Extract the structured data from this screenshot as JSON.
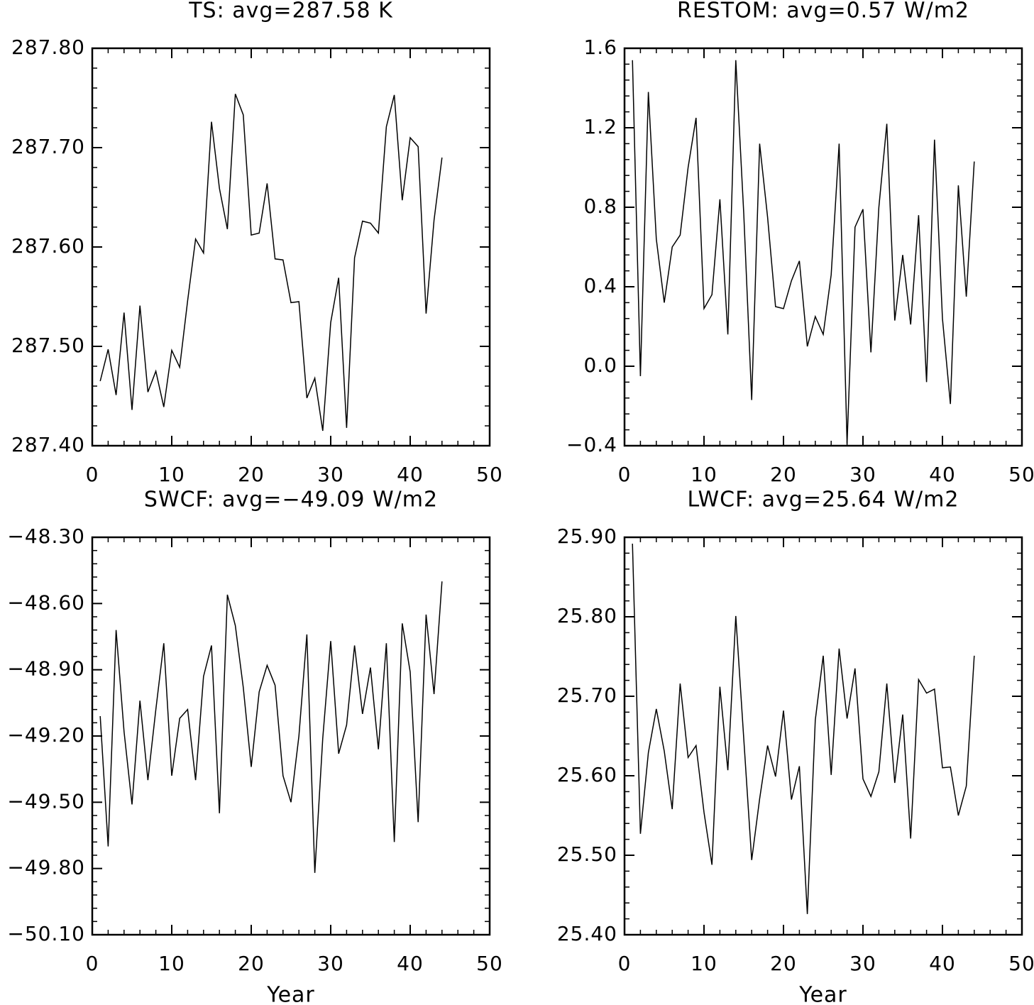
{
  "chart_data": [
    {
      "type": "line",
      "title": "TS: avg=287.58 K",
      "color": "#000000",
      "x": [
        1,
        2,
        3,
        4,
        5,
        6,
        7,
        8,
        9,
        10,
        11,
        12,
        13,
        14,
        15,
        16,
        17,
        18,
        19,
        20,
        21,
        22,
        23,
        24,
        25,
        26,
        27,
        28,
        29,
        30,
        31,
        32,
        33,
        34,
        35,
        36,
        37,
        38,
        39,
        40,
        41,
        42,
        43,
        44
      ],
      "values": [
        287.465,
        287.497,
        287.451,
        287.534,
        287.436,
        287.541,
        287.454,
        287.475,
        287.439,
        287.496,
        287.479,
        287.546,
        287.608,
        287.594,
        287.726,
        287.659,
        287.618,
        287.754,
        287.733,
        287.612,
        287.614,
        287.664,
        287.588,
        287.587,
        287.544,
        287.545,
        287.448,
        287.468,
        287.415,
        287.524,
        287.569,
        287.418,
        287.589,
        287.626,
        287.624,
        287.614,
        287.721,
        287.753,
        287.647,
        287.71,
        287.701,
        287.533,
        287.627,
        287.69
      ],
      "xlim": [
        0,
        50
      ],
      "xticks": [
        0,
        10,
        20,
        30,
        40,
        50
      ],
      "ylim": [
        287.4,
        287.8
      ],
      "yticks": [
        {
          "value": 287.4,
          "label": "287.40"
        },
        {
          "value": 287.5,
          "label": "287.50"
        },
        {
          "value": 287.6,
          "label": "287.60"
        },
        {
          "value": 287.7,
          "label": "287.70"
        },
        {
          "value": 287.8,
          "label": "287.80"
        }
      ]
    },
    {
      "type": "line",
      "title": "RESTOM: avg=0.57 W/m2",
      "color": "#000000",
      "x": [
        1,
        2,
        3,
        4,
        5,
        6,
        7,
        8,
        9,
        10,
        11,
        12,
        13,
        14,
        15,
        16,
        17,
        18,
        19,
        20,
        21,
        22,
        23,
        24,
        25,
        26,
        27,
        28,
        29,
        30,
        31,
        32,
        33,
        34,
        35,
        36,
        37,
        38,
        39,
        40,
        41,
        42,
        43,
        44
      ],
      "values": [
        1.54,
        -0.05,
        1.38,
        0.64,
        0.32,
        0.6,
        0.66,
        1.0,
        1.25,
        0.29,
        0.36,
        0.84,
        0.16,
        1.54,
        0.77,
        -0.17,
        1.12,
        0.75,
        0.3,
        0.29,
        0.43,
        0.53,
        0.1,
        0.25,
        0.16,
        0.46,
        1.12,
        -0.39,
        0.7,
        0.79,
        0.07,
        0.8,
        1.22,
        0.23,
        0.56,
        0.21,
        0.76,
        -0.08,
        1.14,
        0.24,
        -0.19,
        0.91,
        0.35,
        1.03
      ],
      "xlim": [
        0,
        50
      ],
      "xticks": [
        0,
        10,
        20,
        30,
        40,
        50
      ],
      "ylim": [
        -0.4,
        1.6
      ],
      "yticks": [
        {
          "value": -0.4,
          "label": "−0.4"
        },
        {
          "value": 0,
          "label": "0.0"
        },
        0.4,
        0.8,
        1.2,
        1.6
      ]
    },
    {
      "type": "line",
      "title": "SWCF: avg=−49.09 W/m2",
      "xlabel": "Year",
      "color": "#000000",
      "x": [
        1,
        2,
        3,
        4,
        5,
        6,
        7,
        8,
        9,
        10,
        11,
        12,
        13,
        14,
        15,
        16,
        17,
        18,
        19,
        20,
        21,
        22,
        23,
        24,
        25,
        26,
        27,
        28,
        29,
        30,
        31,
        32,
        33,
        34,
        35,
        36,
        37,
        38,
        39,
        40,
        41,
        42,
        43,
        44
      ],
      "values": [
        -49.11,
        -49.7,
        -48.72,
        -49.18,
        -49.51,
        -49.04,
        -49.4,
        -49.08,
        -48.78,
        -49.38,
        -49.12,
        -49.08,
        -49.4,
        -48.93,
        -48.79,
        -49.55,
        -48.56,
        -48.7,
        -48.98,
        -49.34,
        -49.0,
        -48.88,
        -48.97,
        -49.38,
        -49.5,
        -49.2,
        -48.74,
        -49.82,
        -49.21,
        -48.77,
        -49.28,
        -49.15,
        -48.79,
        -49.1,
        -48.89,
        -49.26,
        -48.78,
        -49.68,
        -48.69,
        -48.91,
        -49.59,
        -48.65,
        -49.01,
        -48.5
      ],
      "xlim": [
        0,
        50
      ],
      "xticks": [
        0,
        10,
        20,
        30,
        40,
        50
      ],
      "ylim": [
        -50.1,
        -48.3
      ],
      "yticks": [
        {
          "value": -50.1,
          "label": "−50.10"
        },
        {
          "value": -49.8,
          "label": "−49.80"
        },
        {
          "value": -49.5,
          "label": "−49.50"
        },
        {
          "value": -49.2,
          "label": "−49.20"
        },
        {
          "value": -48.9,
          "label": "−48.90"
        },
        {
          "value": -48.6,
          "label": "−48.60"
        },
        {
          "value": -48.3,
          "label": "−48.30"
        }
      ]
    },
    {
      "type": "line",
      "title": "LWCF: avg=25.64 W/m2",
      "xlabel": "Year",
      "color": "#000000",
      "x": [
        1,
        2,
        3,
        4,
        5,
        6,
        7,
        8,
        9,
        10,
        11,
        12,
        13,
        14,
        15,
        16,
        17,
        18,
        19,
        20,
        21,
        22,
        23,
        24,
        25,
        26,
        27,
        28,
        29,
        30,
        31,
        32,
        33,
        34,
        35,
        36,
        37,
        38,
        39,
        40,
        41,
        42,
        43,
        44
      ],
      "values": [
        25.892,
        25.527,
        25.629,
        25.684,
        25.631,
        25.558,
        25.716,
        25.623,
        25.638,
        25.554,
        25.488,
        25.712,
        25.607,
        25.801,
        25.647,
        25.494,
        25.571,
        25.638,
        25.599,
        25.682,
        25.57,
        25.612,
        25.426,
        25.67,
        25.751,
        25.601,
        25.76,
        25.672,
        25.735,
        25.596,
        25.574,
        25.605,
        25.716,
        25.591,
        25.677,
        25.521,
        25.721,
        25.704,
        25.709,
        25.61,
        25.611,
        25.55,
        25.587,
        25.751
      ],
      "xlim": [
        0,
        50
      ],
      "xticks": [
        0,
        10,
        20,
        30,
        40,
        50
      ],
      "ylim": [
        25.4,
        25.9
      ],
      "yticks": [
        {
          "value": 25.4,
          "label": "25.40"
        },
        {
          "value": 25.5,
          "label": "25.50"
        },
        {
          "value": 25.6,
          "label": "25.60"
        },
        {
          "value": 25.7,
          "label": "25.70"
        },
        {
          "value": 25.8,
          "label": "25.80"
        },
        {
          "value": 25.9,
          "label": "25.90"
        }
      ]
    }
  ]
}
